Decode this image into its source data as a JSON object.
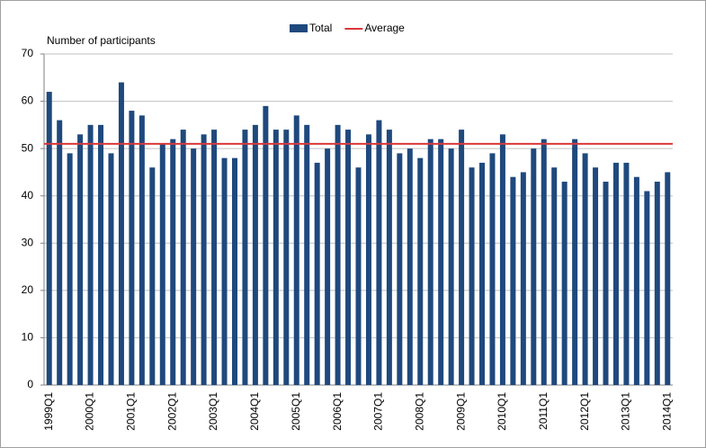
{
  "chart_data": {
    "type": "bar",
    "y_axis_label": "Number of participants",
    "categories": [
      "1999Q1",
      null,
      null,
      null,
      "2000Q1",
      null,
      null,
      null,
      "2001Q1",
      null,
      null,
      null,
      "2002Q1",
      null,
      null,
      null,
      "2003Q1",
      null,
      null,
      null,
      "2004Q1",
      null,
      null,
      null,
      "2005Q1",
      null,
      null,
      null,
      "2006Q1",
      null,
      null,
      null,
      "2007Q1",
      null,
      null,
      null,
      "2008Q1",
      null,
      null,
      null,
      "2009Q1",
      null,
      null,
      null,
      "2010Q1",
      null,
      null,
      null,
      "2011Q1",
      null,
      null,
      null,
      "2012Q1",
      null,
      null,
      null,
      "2013Q1",
      null,
      null,
      null,
      "2014Q1"
    ],
    "series": [
      {
        "name": "Total",
        "color": "#1f497d",
        "type": "bar",
        "values": [
          62,
          56,
          49,
          53,
          55,
          55,
          49,
          64,
          58,
          57,
          46,
          51,
          52,
          54,
          50,
          53,
          54,
          48,
          48,
          54,
          55,
          59,
          54,
          54,
          57,
          55,
          47,
          50,
          55,
          54,
          46,
          53,
          56,
          54,
          49,
          50,
          48,
          52,
          52,
          50,
          54,
          46,
          47,
          49,
          53,
          44,
          45,
          50,
          52,
          46,
          43,
          52,
          49,
          46,
          43,
          47,
          47,
          44,
          41,
          43,
          45
        ]
      },
      {
        "name": "Average",
        "color": "#d9383a",
        "type": "line",
        "values": [
          51,
          51,
          51,
          51,
          51,
          51,
          51,
          51,
          51,
          51,
          51,
          51,
          51,
          51,
          51,
          51,
          51,
          51,
          51,
          51,
          51,
          51,
          51,
          51,
          51,
          51,
          51,
          51,
          51,
          51,
          51,
          51,
          51,
          51,
          51,
          51,
          51,
          51,
          51,
          51,
          51,
          51,
          51,
          51,
          51,
          51,
          51,
          51,
          51,
          51,
          51,
          51,
          51,
          51,
          51,
          51,
          51,
          51,
          51,
          51,
          51
        ]
      }
    ],
    "ylim": [
      0,
      70
    ],
    "yticks": [
      0,
      10,
      20,
      30,
      40,
      50,
      60,
      70
    ],
    "grid": true,
    "legend": "top"
  }
}
